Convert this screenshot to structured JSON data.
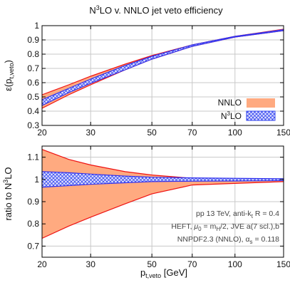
{
  "chart_data": [
    {
      "type": "area",
      "title_parts": [
        "N",
        "3",
        "LO v. NNLO jet veto efficiency"
      ],
      "ylabel_parts": [
        "ε(p",
        "t,veto",
        ")"
      ],
      "xlabel": "",
      "xscale": "log",
      "xlim": [
        20,
        150
      ],
      "ylim": [
        0.3,
        1.0
      ],
      "x_ticks": [
        20,
        30,
        50,
        70,
        100,
        150
      ],
      "y_ticks": [
        0.3,
        0.4,
        0.5,
        0.6,
        0.7,
        0.8,
        0.9,
        1
      ],
      "grid": true,
      "legend_position": "bottom-right",
      "x": [
        20,
        25,
        30,
        40,
        50,
        70,
        100,
        150
      ],
      "series": [
        {
          "name": "NNLO",
          "color": "#ffaa80",
          "edge_color": "#ee1111",
          "style": "solid-band",
          "lower": [
            0.42,
            0.515,
            0.585,
            0.69,
            0.765,
            0.855,
            0.92,
            0.965
          ],
          "upper": [
            0.515,
            0.585,
            0.645,
            0.73,
            0.79,
            0.865,
            0.925,
            0.975
          ]
        },
        {
          "name_parts": [
            "N",
            "3",
            "LO"
          ],
          "color": "#3333ee",
          "style": "hatched-band",
          "lower": [
            0.44,
            0.53,
            0.595,
            0.69,
            0.765,
            0.855,
            0.92,
            0.965
          ],
          "upper": [
            0.48,
            0.56,
            0.625,
            0.72,
            0.785,
            0.865,
            0.925,
            0.972
          ]
        }
      ]
    },
    {
      "type": "area",
      "ylabel_parts": [
        "ratio to N",
        "3",
        "LO"
      ],
      "xlabel_parts": [
        "p",
        "t,veto",
        " [GeV]"
      ],
      "xscale": "log",
      "xlim": [
        20,
        150
      ],
      "ylim": [
        0.65,
        1.15
      ],
      "x_ticks": [
        20,
        30,
        50,
        70,
        100,
        150
      ],
      "y_ticks": [
        0.7,
        0.8,
        0.9,
        1,
        1.1
      ],
      "grid": true,
      "x": [
        20,
        25,
        30,
        40,
        50,
        70,
        100,
        150
      ],
      "series": [
        {
          "name": "NNLO",
          "color": "#ffaa80",
          "edge_color": "#ee1111",
          "style": "solid-band",
          "lower": [
            0.735,
            0.79,
            0.83,
            0.89,
            0.935,
            0.975,
            0.982,
            0.99
          ],
          "upper": [
            1.135,
            1.09,
            1.065,
            1.035,
            1.02,
            1.005,
            1.003,
            1.0
          ]
        },
        {
          "name_parts": [
            "N",
            "3",
            "LO"
          ],
          "color": "#3333ee",
          "style": "hatched-band",
          "lower": [
            0.965,
            0.972,
            0.978,
            0.985,
            0.99,
            0.992,
            0.993,
            0.995
          ],
          "upper": [
            1.035,
            1.03,
            1.024,
            1.015,
            1.01,
            1.007,
            1.005,
            1.003
          ]
        }
      ],
      "annotation_lines": [
        [
          {
            "t": "pp 13 TeV, anti-k"
          },
          {
            "t": "t",
            "sub": true
          },
          {
            "t": " R = 0.4"
          }
        ],
        [
          {
            "t": "HEFT, "
          },
          {
            "t": "μ",
            "italic": true
          },
          {
            "t": "0",
            "sub": true
          },
          {
            "t": " = m"
          },
          {
            "t": "H",
            "sub": true
          },
          {
            "t": "/2, JVE a(7 scl.),b"
          }
        ],
        [
          {
            "t": "NNPDF2.3 (NNLO), α"
          },
          {
            "t": "s",
            "sub": true
          },
          {
            "t": " = 0.118"
          }
        ]
      ]
    }
  ]
}
